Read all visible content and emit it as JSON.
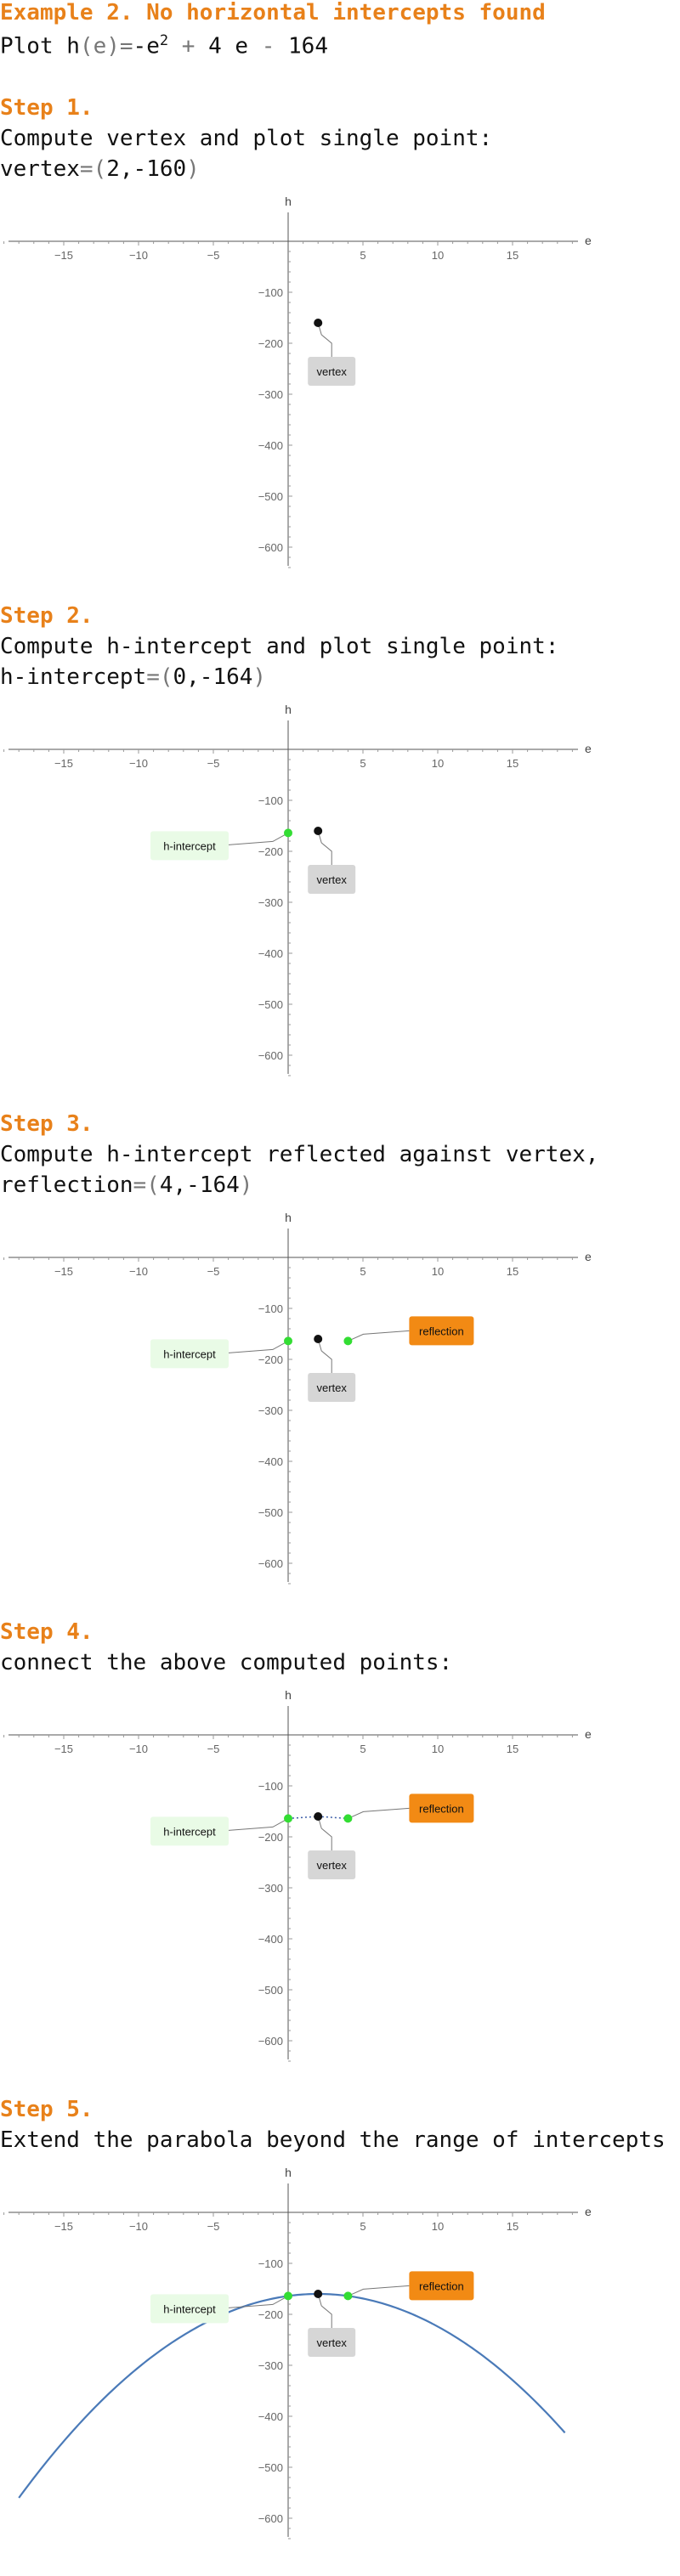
{
  "title": "Example 2. No horizontal intercepts found",
  "function_line": {
    "prefix": "Plot h",
    "paren_var": "(e)",
    "equals": "=",
    "neg_e": "-e",
    "exponent": "2",
    "rest_plus": "+",
    "rest_term": "4 e",
    "rest_minus": "-",
    "rest_const": "164"
  },
  "steps": [
    {
      "heading": "Step 1.",
      "line1": "Compute vertex and plot single point:",
      "line2_label": "vertex",
      "line2_eq": "=",
      "line2_open": "(",
      "line2_value": "2,-160",
      "line2_close": ")"
    },
    {
      "heading": "Step 2.",
      "line1": "Compute h-intercept and plot single point:",
      "line2_label": "h-intercept",
      "line2_eq": "=",
      "line2_open": "(",
      "line2_value": "0,-164",
      "line2_close": ")"
    },
    {
      "heading": "Step 3.",
      "line1": "Compute h-intercept reflected against vertex,",
      "line2_label": "reflection",
      "line2_eq": "=",
      "line2_open": "(",
      "line2_value": "4,-164",
      "line2_close": ")"
    },
    {
      "heading": "Step 4.",
      "line1": "connect the above computed points:"
    },
    {
      "heading": "Step 5.",
      "line1": "Extend the parabola beyond the range of intercepts"
    }
  ],
  "colors": {
    "heading": "#e8811a",
    "green_point": "#33dd33",
    "green_label_bg": "#e9fbe6",
    "orange_label_bg": "#f28a14",
    "gray_label_bg": "#d6d6d6",
    "curve": "#4a7ab8",
    "axis": "#555555"
  },
  "chart_data": [
    {
      "type": "scatter",
      "step": 1,
      "xlabel": "e",
      "ylabel": "h",
      "xlim": [
        -19,
        19
      ],
      "ylim": [
        -650,
        0
      ],
      "x_ticks": [
        -15,
        -10,
        -5,
        5,
        10,
        15
      ],
      "y_ticks": [
        -100,
        -200,
        -300,
        -400,
        -500,
        -600
      ],
      "points": [
        {
          "x": 2,
          "y": -160,
          "label": "vertex",
          "color": "#111111",
          "label_style": "gray",
          "label_side": "below"
        }
      ],
      "connect": false,
      "curve": null
    },
    {
      "type": "scatter",
      "step": 2,
      "xlabel": "e",
      "ylabel": "h",
      "xlim": [
        -19,
        19
      ],
      "ylim": [
        -650,
        0
      ],
      "x_ticks": [
        -15,
        -10,
        -5,
        5,
        10,
        15
      ],
      "y_ticks": [
        -100,
        -200,
        -300,
        -400,
        -500,
        -600
      ],
      "points": [
        {
          "x": 2,
          "y": -160,
          "label": "vertex",
          "color": "#111111",
          "label_style": "gray",
          "label_side": "below"
        },
        {
          "x": 0,
          "y": -164,
          "label": "h-intercept",
          "color": "#33dd33",
          "label_style": "green",
          "label_side": "left"
        }
      ],
      "connect": false,
      "curve": null
    },
    {
      "type": "scatter",
      "step": 3,
      "xlabel": "e",
      "ylabel": "h",
      "xlim": [
        -19,
        19
      ],
      "ylim": [
        -650,
        0
      ],
      "x_ticks": [
        -15,
        -10,
        -5,
        5,
        10,
        15
      ],
      "y_ticks": [
        -100,
        -200,
        -300,
        -400,
        -500,
        -600
      ],
      "points": [
        {
          "x": 2,
          "y": -160,
          "label": "vertex",
          "color": "#111111",
          "label_style": "gray",
          "label_side": "below"
        },
        {
          "x": 0,
          "y": -164,
          "label": "h-intercept",
          "color": "#33dd33",
          "label_style": "green",
          "label_side": "left"
        },
        {
          "x": 4,
          "y": -164,
          "label": "reflection",
          "color": "#33dd33",
          "label_style": "orange",
          "label_side": "right"
        }
      ],
      "connect": false,
      "curve": null
    },
    {
      "type": "scatter",
      "step": 4,
      "xlabel": "e",
      "ylabel": "h",
      "xlim": [
        -19,
        19
      ],
      "ylim": [
        -650,
        0
      ],
      "x_ticks": [
        -15,
        -10,
        -5,
        5,
        10,
        15
      ],
      "y_ticks": [
        -100,
        -200,
        -300,
        -400,
        -500,
        -600
      ],
      "points": [
        {
          "x": 2,
          "y": -160,
          "label": "vertex",
          "color": "#111111",
          "label_style": "gray",
          "label_side": "below"
        },
        {
          "x": 0,
          "y": -164,
          "label": "h-intercept",
          "color": "#33dd33",
          "label_style": "green",
          "label_side": "left"
        },
        {
          "x": 4,
          "y": -164,
          "label": "reflection",
          "color": "#33dd33",
          "label_style": "orange",
          "label_side": "right"
        }
      ],
      "connect": true,
      "curve": null
    },
    {
      "type": "line",
      "step": 5,
      "xlabel": "e",
      "ylabel": "h",
      "xlim": [
        -19,
        19
      ],
      "ylim": [
        -650,
        0
      ],
      "x_ticks": [
        -15,
        -10,
        -5,
        5,
        10,
        15
      ],
      "y_ticks": [
        -100,
        -200,
        -300,
        -400,
        -500,
        -600
      ],
      "points": [
        {
          "x": 2,
          "y": -160,
          "label": "vertex",
          "color": "#111111",
          "label_style": "gray",
          "label_side": "below"
        },
        {
          "x": 0,
          "y": -164,
          "label": "h-intercept",
          "color": "#33dd33",
          "label_style": "green",
          "label_side": "left"
        },
        {
          "x": 4,
          "y": -164,
          "label": "reflection",
          "color": "#33dd33",
          "label_style": "orange",
          "label_side": "right"
        }
      ],
      "connect": false,
      "curve": {
        "function": "h(e) = -e^2 + 4e - 164",
        "a": -1,
        "b": 4,
        "c": -164,
        "x_from": -18,
        "x_to": 18.5
      }
    }
  ]
}
